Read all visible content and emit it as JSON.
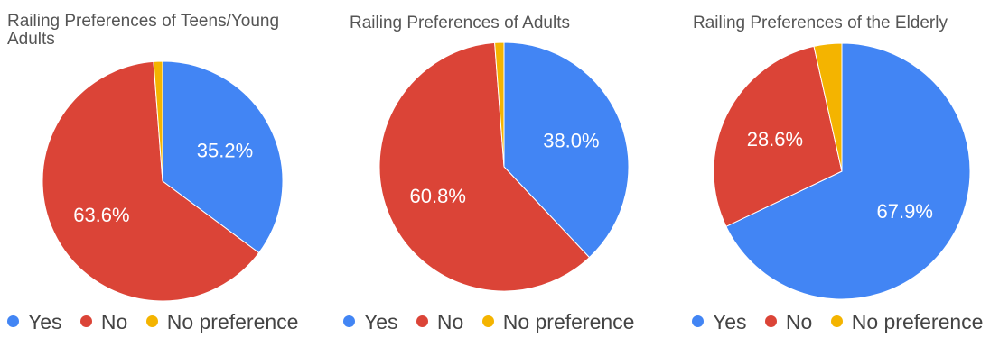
{
  "chart_data": [
    {
      "type": "pie",
      "title": "Railing Preferences of Teens/Young Adults",
      "title_lines": [
        "Railing Preferences of Teens/Young",
        "Adults"
      ],
      "legend_position": "bottom",
      "categories": [
        "Yes",
        "No",
        "No preference"
      ],
      "values": [
        35.2,
        63.6,
        1.2
      ],
      "value_labels": [
        "35.2%",
        "63.6%",
        ""
      ],
      "colors": [
        "#4285f4",
        "#db4437",
        "#f4b400"
      ]
    },
    {
      "type": "pie",
      "title": "Railing Preferences of Adults",
      "title_lines": [
        "Railing Preferences of Adults"
      ],
      "legend_position": "bottom",
      "categories": [
        "Yes",
        "No",
        "No preference"
      ],
      "values": [
        38.0,
        60.8,
        1.2
      ],
      "value_labels": [
        "38.0%",
        "60.8%",
        ""
      ],
      "colors": [
        "#4285f4",
        "#db4437",
        "#f4b400"
      ]
    },
    {
      "type": "pie",
      "title": "Railing Preferences of the Elderly",
      "title_lines": [
        "Railing Preferences of the Elderly"
      ],
      "legend_position": "bottom",
      "categories": [
        "Yes",
        "No",
        "No preference"
      ],
      "values": [
        67.9,
        28.6,
        3.5
      ],
      "value_labels": [
        "67.9%",
        "28.6%",
        ""
      ],
      "colors": [
        "#4285f4",
        "#db4437",
        "#f4b400"
      ]
    }
  ]
}
